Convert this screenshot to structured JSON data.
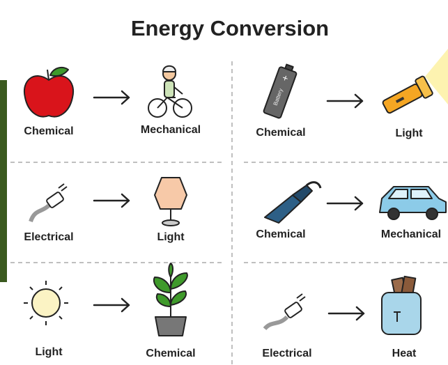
{
  "title": "Energy Conversion",
  "panels": [
    {
      "from": "Chemical",
      "to": "Mechanical"
    },
    {
      "from": "Chemical",
      "to": "Light"
    },
    {
      "from": "Electrical",
      "to": "Light"
    },
    {
      "from": "Chemical",
      "to": "Mechanical"
    },
    {
      "from": "Light",
      "to": "Chemical"
    },
    {
      "from": "Electrical",
      "to": "Heat"
    }
  ],
  "battery_label": "Battery"
}
